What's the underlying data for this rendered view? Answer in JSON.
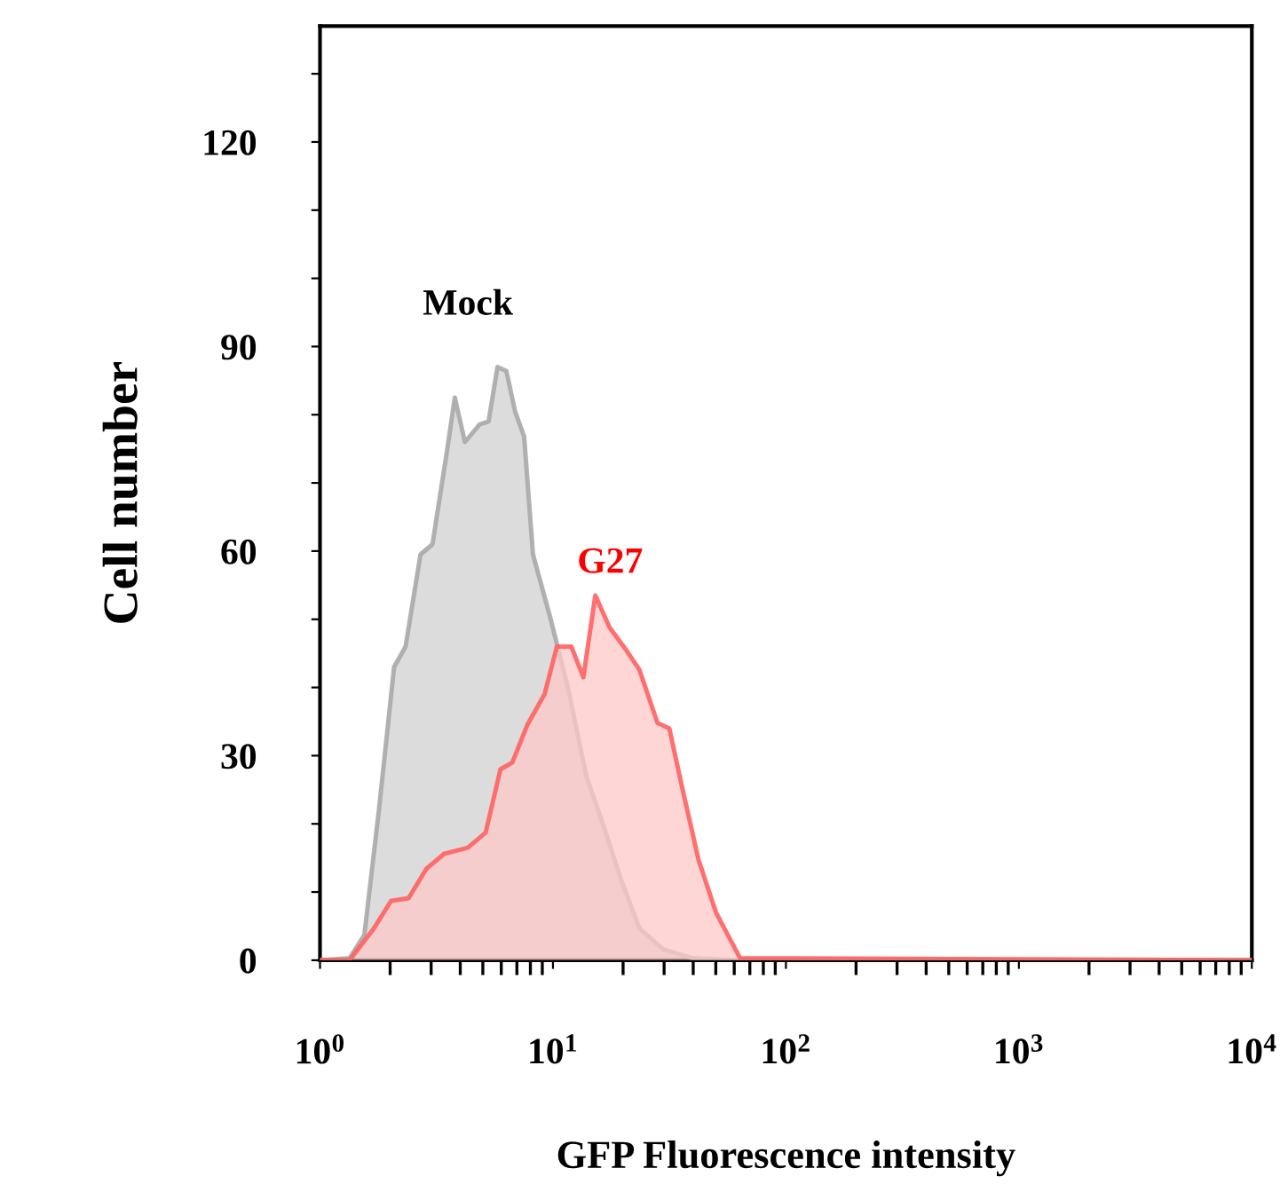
{
  "chart_data": {
    "type": "area",
    "xlabel": "GFP Fluorescence intensity",
    "ylabel": "Cell number",
    "log": "x",
    "xlim": [
      1,
      10000
    ],
    "ylim": [
      0,
      137
    ],
    "xticks": [
      {
        "value": 1,
        "label": "10$^{0}$"
      },
      {
        "value": 10,
        "label": "10$^{1}$"
      },
      {
        "value": 100,
        "label": "10$^{2}$"
      },
      {
        "value": 1000,
        "label": "10$^{3}$"
      },
      {
        "value": 10000,
        "label": "10$^{4}$"
      }
    ],
    "yticks": [
      0,
      {
        "value": 10,
        "label": null
      },
      {
        "value": 20,
        "label": null
      },
      30,
      {
        "value": 40,
        "label": null
      },
      {
        "value": 50,
        "label": null
      },
      60,
      {
        "value": 70,
        "label": null
      },
      {
        "value": 80,
        "label": null
      },
      90,
      {
        "value": 100,
        "label": null
      },
      {
        "value": 110,
        "label": null
      },
      120,
      {
        "value": 130,
        "label": null
      }
    ],
    "grid": false,
    "legend": false,
    "series": [
      {
        "name": "Mock",
        "color": "#dcdcdc",
        "x": [
          1,
          1.34,
          1.55,
          1.79,
          2.08,
          2.33,
          2.7,
          3.04,
          3.52,
          3.79,
          4.19,
          4.85,
          5.29,
          5.78,
          6.31,
          6.89,
          7.52,
          8.21,
          9.78,
          11.7,
          13.9,
          16.6,
          19.7,
          23.5,
          29.7,
          39.8,
          60,
          10000
        ],
        "values": [
          0,
          0.3,
          3.7,
          22,
          43,
          46,
          59.5,
          61,
          75,
          82.5,
          76,
          78.6,
          79,
          87,
          86.4,
          80.4,
          76.8,
          59.5,
          50,
          39.4,
          27,
          19.4,
          11.6,
          4.7,
          1.6,
          0.3,
          0,
          0
        ]
      },
      {
        "name": "G27",
        "color": "#ffc8c8",
        "x": [
          1,
          1.34,
          1.69,
          2.02,
          2.4,
          2.86,
          3.41,
          4.31,
          5.14,
          5.95,
          6.69,
          7.76,
          9.2,
          10.4,
          12,
          13.5,
          15.2,
          17.5,
          20.8,
          23.5,
          28.1,
          31.6,
          35.5,
          42.1,
          50.1,
          63.6,
          10000
        ],
        "values": [
          0,
          0,
          4.5,
          8.7,
          9.1,
          13.4,
          15.6,
          16.5,
          18.7,
          28,
          29,
          34.5,
          39,
          46,
          46,
          41.5,
          53.5,
          48.8,
          45.3,
          42.6,
          34.8,
          34,
          26,
          14.8,
          7,
          0.3,
          0
        ]
      }
    ]
  }
}
